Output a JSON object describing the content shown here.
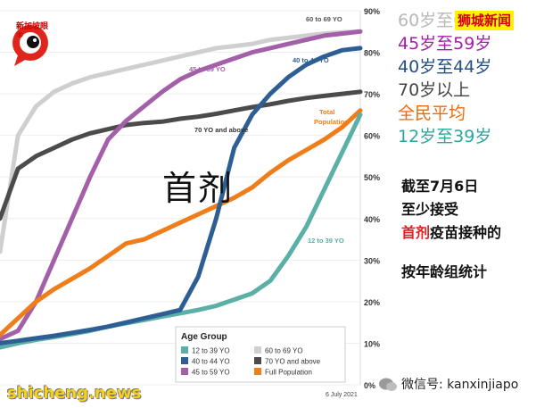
{
  "chart_data": {
    "type": "line",
    "title": "首剂",
    "date_label": "6 July 2021",
    "y_ticks": [
      "0%",
      "10%",
      "20%",
      "30%",
      "40%",
      "50%",
      "60%",
      "70%",
      "80%",
      "90%"
    ],
    "ylim": [
      0,
      90
    ],
    "legend_title": "Age Group",
    "series": [
      {
        "name": "12 to 39 YO",
        "color": "#5aafa6",
        "values": [
          9,
          10,
          10.8,
          11.5,
          12.2,
          13,
          14,
          14.8,
          15.6,
          16.4,
          17.2,
          18,
          19,
          20.5,
          22,
          25,
          31,
          38,
          47,
          56,
          65
        ]
      },
      {
        "name": "40 to 44 YO",
        "color": "#2e5f94",
        "values": [
          10,
          10.6,
          11.2,
          11.8,
          12.5,
          13.2,
          14,
          15,
          16,
          17,
          18,
          26,
          40,
          57,
          65,
          70,
          74,
          77,
          79,
          80.5,
          81
        ]
      },
      {
        "name": "45 to 59 YO",
        "color": "#a360a8",
        "values": [
          11,
          13,
          20,
          30,
          40,
          50,
          59,
          63.5,
          67,
          70.5,
          73.5,
          75.5,
          77,
          78.5,
          80,
          81,
          82,
          83,
          84,
          84.5,
          85
        ]
      },
      {
        "name": "60 to 69 YO",
        "color": "#cfcfcf",
        "values": [
          32,
          60,
          67,
          70.5,
          72.5,
          74,
          75,
          76,
          77,
          78,
          79,
          80,
          81,
          81.5,
          82,
          83,
          83.5,
          84,
          84.5,
          84.8,
          85
        ]
      },
      {
        "name": "70 YO and above",
        "color": "#4b4b4b",
        "values": [
          40,
          52,
          55,
          57,
          59,
          60.5,
          61.5,
          62.5,
          63,
          63.3,
          64,
          64.5,
          65.2,
          66,
          66.8,
          67.5,
          68.3,
          69,
          69.5,
          70,
          70.5
        ]
      },
      {
        "name": "Full Population",
        "color": "#ef7d1a",
        "values": [
          12,
          16,
          20,
          23,
          25.5,
          28,
          31,
          34,
          35,
          37,
          39,
          41,
          43,
          45,
          47.5,
          51,
          54,
          56.5,
          59,
          62,
          66
        ]
      }
    ],
    "inline_labels": [
      {
        "text": "60 to 69 YO",
        "series": "60 to 69 YO"
      },
      {
        "text": "45 to 59 YO",
        "series": "45 to 59 YO"
      },
      {
        "text": "40 to 44 YO",
        "series": "40 to 44 YO"
      },
      {
        "text": "70 YO and above",
        "series": "70 YO and above"
      },
      {
        "text": "Total Population",
        "series": "Full Population"
      },
      {
        "text": "12 to 39 YO",
        "series": "12 to 39 YO"
      }
    ]
  },
  "cn_legend": [
    {
      "text": "60岁至69岁",
      "color": "#b8b8b8"
    },
    {
      "text": "45岁至59岁",
      "color": "#a21fa6"
    },
    {
      "text": "40岁至44岁",
      "color": "#234e86"
    },
    {
      "text": "70岁以上",
      "color": "#444444"
    },
    {
      "text": "全民平均",
      "color": "#ec6a0c"
    },
    {
      "text": "12岁至39岁",
      "color": "#2aa79b"
    }
  ],
  "brand": "狮城新闻",
  "logo_text": "新加坡眼®",
  "side_note": {
    "line1": "截至7月6日",
    "line2": "至少接受",
    "line3_red": "首剂",
    "line3_rest": "疫苗接种的",
    "line4": "按年龄组统计"
  },
  "watermark_left": "shicheng.news",
  "watermark_right": "微信号: kanxinjiapo"
}
